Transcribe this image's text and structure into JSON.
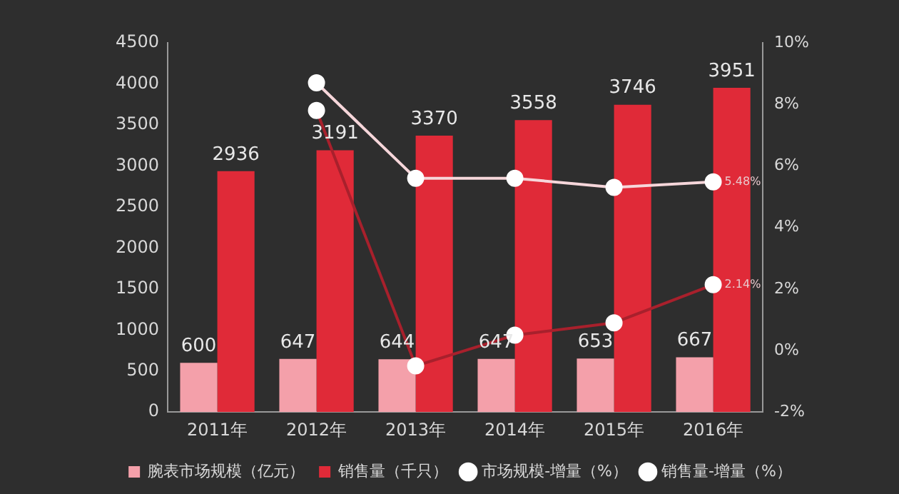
{
  "chart_data": {
    "type": "bar",
    "categories": [
      "2011年",
      "2012年",
      "2013年",
      "2014年",
      "2015年",
      "2016年"
    ],
    "series": [
      {
        "name": "腕表市场规模（亿元）",
        "color": "#f4a0aa",
        "values": [
          600,
          647,
          644,
          647,
          653,
          667
        ]
      },
      {
        "name": "销售量（千只）",
        "color": "#e02a38",
        "values": [
          2936,
          3191,
          3370,
          3558,
          3746,
          3951
        ]
      },
      {
        "name": "市场规模-增量（%）",
        "type": "line",
        "axis": "y2",
        "color": "#a8202c",
        "values": [
          null,
          7.8,
          -0.5,
          0.5,
          0.9,
          2.14
        ],
        "value_labels": [
          null,
          null,
          null,
          null,
          null,
          "2.14%"
        ]
      },
      {
        "name": "销售量-增量（%）",
        "type": "line",
        "axis": "y2",
        "color": "#f6d6da",
        "values": [
          null,
          8.7,
          5.6,
          5.6,
          5.3,
          5.48
        ],
        "value_labels": [
          null,
          null,
          null,
          null,
          null,
          "5.48%"
        ]
      }
    ],
    "ylim": [
      0,
      4500
    ],
    "yticks": [
      0,
      500,
      1000,
      1500,
      2000,
      2500,
      3000,
      3500,
      4000,
      4500
    ],
    "y2lim": [
      -2,
      10
    ],
    "y2ticks": [
      {
        "value": -2,
        "label": "-2%"
      },
      {
        "value": 0,
        "label": "0%"
      },
      {
        "value": 2,
        "label": "2%"
      },
      {
        "value": 4,
        "label": "4%"
      },
      {
        "value": 6,
        "label": "6%"
      },
      {
        "value": 8,
        "label": "8%"
      },
      {
        "value": 10,
        "label": "10%"
      }
    ],
    "data_labels": true,
    "legend": "bottom",
    "grid": false,
    "marker": "circle"
  }
}
